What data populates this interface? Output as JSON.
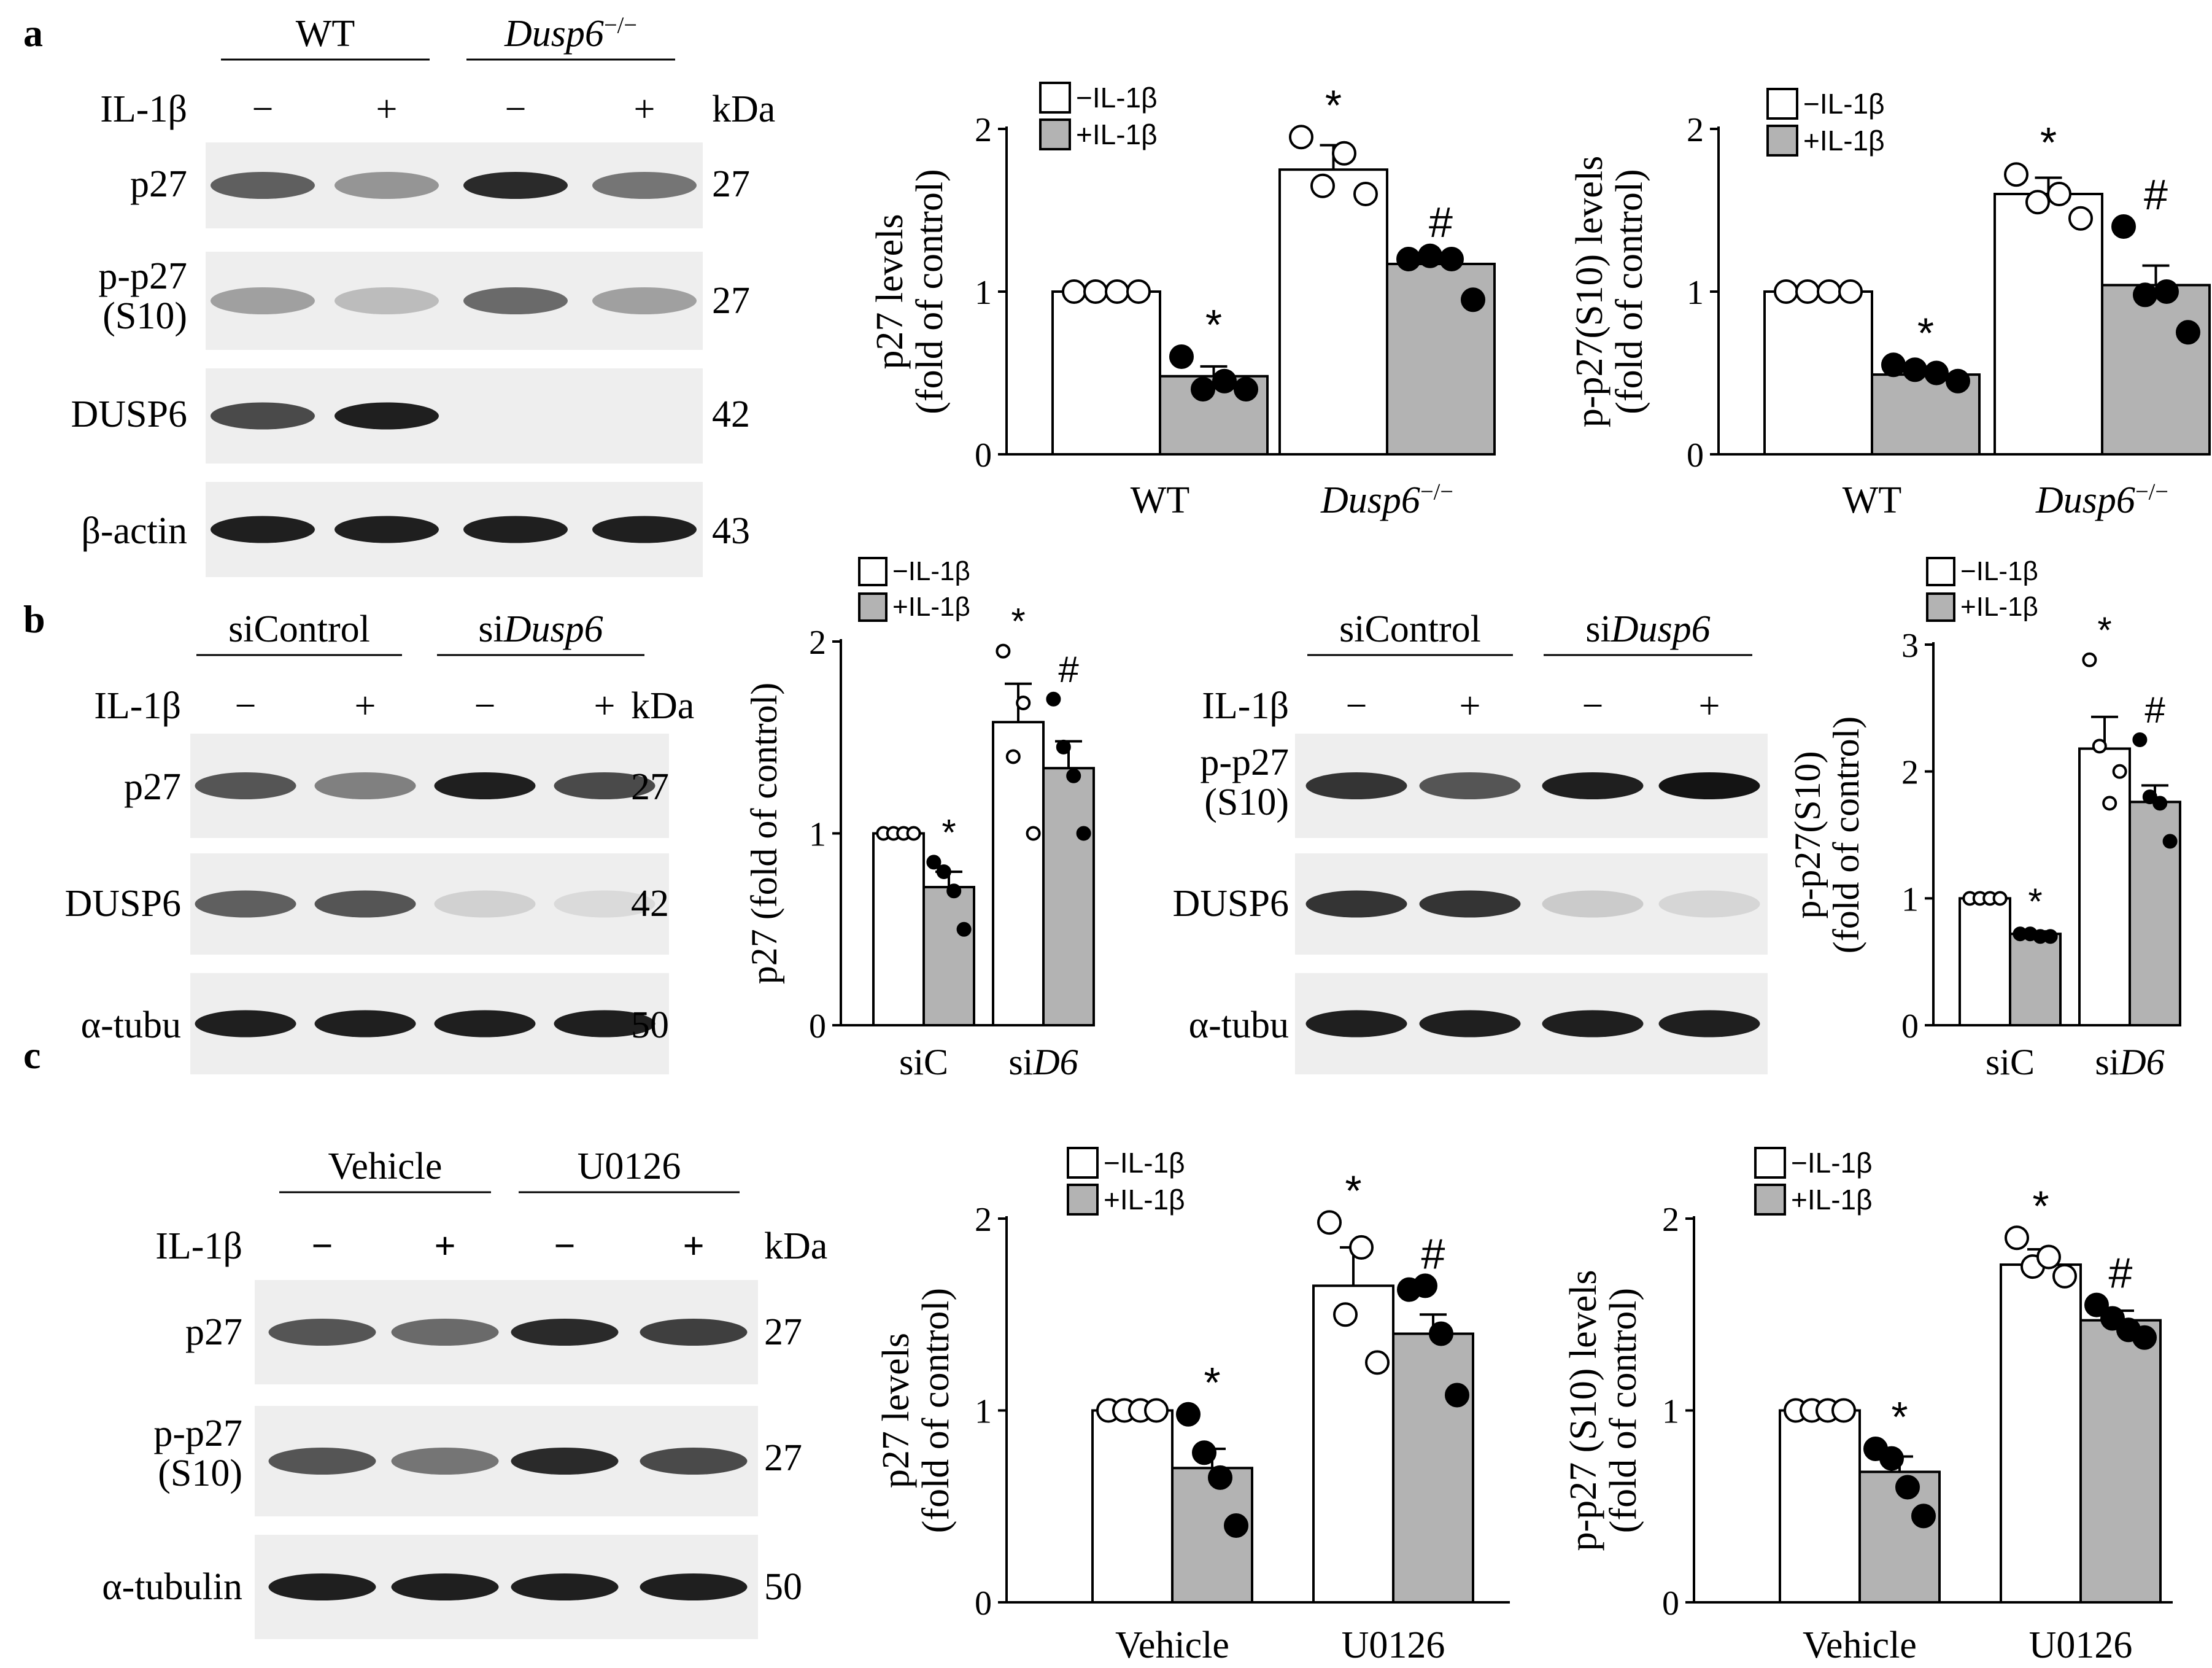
{
  "panels": {
    "a": {
      "letter": "a",
      "blot": {
        "groups": [
          "WT",
          "Dusp6−/−"
        ],
        "treatment_label": "IL-1β",
        "signs": [
          "−",
          "+",
          "−",
          "+"
        ],
        "kda_label": "kDa",
        "rows": [
          {
            "label": "p27",
            "kda": "27",
            "intensities": [
              0.65,
              0.4,
              0.9,
              0.55
            ]
          },
          {
            "label": "p-p27|(S10)",
            "kda": "27",
            "intensities": [
              0.35,
              0.22,
              0.6,
              0.35
            ]
          },
          {
            "label": "DUSP6",
            "kda": "42",
            "intensities": [
              0.75,
              0.95,
              0.0,
              0.0
            ]
          },
          {
            "label": "β-actin",
            "kda": "43",
            "intensities": [
              0.95,
              0.95,
              0.95,
              0.95
            ]
          }
        ]
      }
    },
    "b": {
      "letter": "b",
      "blot_left": {
        "groups": [
          "siControl",
          "siDusp6"
        ],
        "treatment_label": "IL-1β",
        "signs": [
          "−",
          "+",
          "−",
          "+"
        ],
        "kda_label": "kDa",
        "rows": [
          {
            "label": "p27",
            "kda": "27",
            "intensities": [
              0.7,
              0.5,
              0.95,
              0.75
            ]
          },
          {
            "label": "DUSP6",
            "kda": "42",
            "intensities": [
              0.65,
              0.7,
              0.12,
              0.08
            ]
          },
          {
            "label": "α-tubu",
            "kda": "50",
            "intensities": [
              0.95,
              0.95,
              0.95,
              0.95
            ]
          }
        ]
      },
      "blot_right": {
        "groups": [
          "siControl",
          "siDusp6"
        ],
        "treatment_label": "IL-1β",
        "signs": [
          "−",
          "+",
          "−",
          "+"
        ],
        "rows": [
          {
            "label": "p-p27|(S10)",
            "intensities": [
              0.85,
              0.7,
              0.95,
              1.0
            ]
          },
          {
            "label": "DUSP6",
            "intensities": [
              0.85,
              0.85,
              0.15,
              0.1
            ]
          },
          {
            "label": "α-tubu",
            "intensities": [
              0.95,
              0.95,
              0.95,
              0.95
            ]
          }
        ]
      }
    },
    "c": {
      "letter": "c",
      "blot": {
        "groups": [
          "Vehicle",
          "U0126"
        ],
        "treatment_label": "IL-1β",
        "signs": [
          "−",
          "+",
          "−",
          "+"
        ],
        "kda_label": "kDa",
        "rows": [
          {
            "label": "p27",
            "kda": "27",
            "intensities": [
              0.7,
              0.6,
              0.9,
              0.8
            ]
          },
          {
            "label": "p-p27|(S10)",
            "kda": "27",
            "intensities": [
              0.7,
              0.55,
              0.9,
              0.75
            ]
          },
          {
            "label": "α-tubulin",
            "kda": "50",
            "intensities": [
              0.95,
              0.95,
              0.95,
              0.95
            ]
          }
        ]
      }
    }
  },
  "chart_data": [
    {
      "id": "a1",
      "type": "bar",
      "ylabel": "p27 levels|(fold of control)",
      "categories": [
        "WT",
        "Dusp6−/−"
      ],
      "ylim": [
        0,
        2
      ],
      "yticks": [
        0,
        1,
        2
      ],
      "series": [
        {
          "name": "−IL-1β",
          "values": [
            1.0,
            1.75
          ],
          "errors": [
            0,
            0.15
          ],
          "points": [
            [
              1,
              1,
              1,
              1
            ],
            [
              1.95,
              1.65,
              1.85,
              1.6
            ]
          ],
          "sig": [
            "",
            "*"
          ]
        },
        {
          "name": "+IL-1β",
          "values": [
            0.48,
            1.17
          ],
          "errors": [
            0.06,
            0.06
          ],
          "points": [
            [
              0.6,
              0.4,
              0.45,
              0.4
            ],
            [
              1.2,
              1.22,
              1.2,
              0.95
            ]
          ],
          "sig": [
            "*",
            "#"
          ]
        }
      ]
    },
    {
      "id": "a2",
      "type": "bar",
      "ylabel": "p-p27(S10) levels|(fold of control)",
      "categories": [
        "WT",
        "Dusp6−/−"
      ],
      "ylim": [
        0,
        2
      ],
      "yticks": [
        0,
        1,
        2
      ],
      "series": [
        {
          "name": "−IL-1β",
          "values": [
            1.0,
            1.6
          ],
          "errors": [
            0,
            0.1
          ],
          "points": [
            [
              1,
              1,
              1,
              1
            ],
            [
              1.72,
              1.55,
              1.6,
              1.45
            ]
          ],
          "sig": [
            "",
            "*"
          ]
        },
        {
          "name": "+IL-1β",
          "values": [
            0.49,
            1.04
          ],
          "errors": [
            0.02,
            0.12
          ],
          "points": [
            [
              0.55,
              0.52,
              0.5,
              0.45
            ],
            [
              1.4,
              0.98,
              1.0,
              0.75
            ]
          ],
          "sig": [
            "*",
            "#"
          ]
        }
      ]
    },
    {
      "id": "b1",
      "type": "bar",
      "ylabel": "p27 (fold of control)",
      "categories": [
        "siC",
        "siD6"
      ],
      "ylim": [
        0,
        2
      ],
      "yticks": [
        0,
        1,
        2
      ],
      "series": [
        {
          "name": "−IL-1β",
          "values": [
            1.0,
            1.58
          ],
          "errors": [
            0,
            0.2
          ],
          "points": [
            [
              1,
              1,
              1,
              1
            ],
            [
              1.95,
              1.4,
              1.68,
              1.0
            ]
          ],
          "sig": [
            "",
            "*"
          ]
        },
        {
          "name": "+IL-1β",
          "values": [
            0.72,
            1.34
          ],
          "errors": [
            0.08,
            0.14
          ],
          "points": [
            [
              0.85,
              0.8,
              0.7,
              0.5
            ],
            [
              1.7,
              1.45,
              1.3,
              1.0
            ]
          ],
          "sig": [
            "*",
            "#"
          ]
        }
      ]
    },
    {
      "id": "b2",
      "type": "bar",
      "ylabel": "p-p27(S10)|(fold of control)",
      "categories": [
        "siC",
        "siD6"
      ],
      "ylim": [
        0,
        3
      ],
      "yticks": [
        0,
        1,
        2,
        3
      ],
      "series": [
        {
          "name": "−IL-1β",
          "values": [
            1.0,
            2.18
          ],
          "errors": [
            0,
            0.25
          ],
          "points": [
            [
              1,
              1,
              1,
              1
            ],
            [
              2.88,
              2.2,
              1.75,
              2.0
            ]
          ],
          "sig": [
            "",
            "*"
          ]
        },
        {
          "name": "+IL-1β",
          "values": [
            0.72,
            1.76
          ],
          "errors": [
            0.02,
            0.13
          ],
          "points": [
            [
              0.72,
              0.72,
              0.7,
              0.7
            ],
            [
              2.25,
              1.8,
              1.75,
              1.45
            ]
          ],
          "sig": [
            "*",
            "#"
          ]
        }
      ]
    },
    {
      "id": "c1",
      "type": "bar",
      "ylabel": "p27 levels|(fold of control)",
      "categories": [
        "Vehicle",
        "U0126"
      ],
      "ylim": [
        0,
        2
      ],
      "yticks": [
        0,
        1,
        2
      ],
      "series": [
        {
          "name": "−IL-1β",
          "values": [
            1.0,
            1.65
          ],
          "errors": [
            0,
            0.2
          ],
          "points": [
            [
              1,
              1,
              1,
              1
            ],
            [
              1.98,
              1.5,
              1.85,
              1.25
            ]
          ],
          "sig": [
            "",
            "*"
          ]
        },
        {
          "name": "+IL-1β",
          "values": [
            0.7,
            1.4
          ],
          "errors": [
            0.1,
            0.1
          ],
          "points": [
            [
              0.98,
              0.78,
              0.65,
              0.4
            ],
            [
              1.63,
              1.65,
              1.4,
              1.08
            ]
          ],
          "sig": [
            "*",
            "#"
          ]
        }
      ]
    },
    {
      "id": "c2",
      "type": "bar",
      "ylabel": "p-p27 (S10) levels|(fold of control)",
      "categories": [
        "Vehicle",
        "U0126"
      ],
      "ylim": [
        0,
        2
      ],
      "yticks": [
        0,
        1,
        2
      ],
      "series": [
        {
          "name": "−IL-1β",
          "values": [
            1.0,
            1.76
          ],
          "errors": [
            0,
            0.08
          ],
          "points": [
            [
              1,
              1,
              1,
              1
            ],
            [
              1.9,
              1.75,
              1.8,
              1.7
            ]
          ],
          "sig": [
            "",
            "*"
          ]
        },
        {
          "name": "+IL-1β",
          "values": [
            0.68,
            1.47
          ],
          "errors": [
            0.08,
            0.05
          ],
          "points": [
            [
              0.8,
              0.75,
              0.6,
              0.45
            ],
            [
              1.55,
              1.48,
              1.42,
              1.38
            ]
          ],
          "sig": [
            "*",
            "#"
          ]
        }
      ]
    }
  ]
}
